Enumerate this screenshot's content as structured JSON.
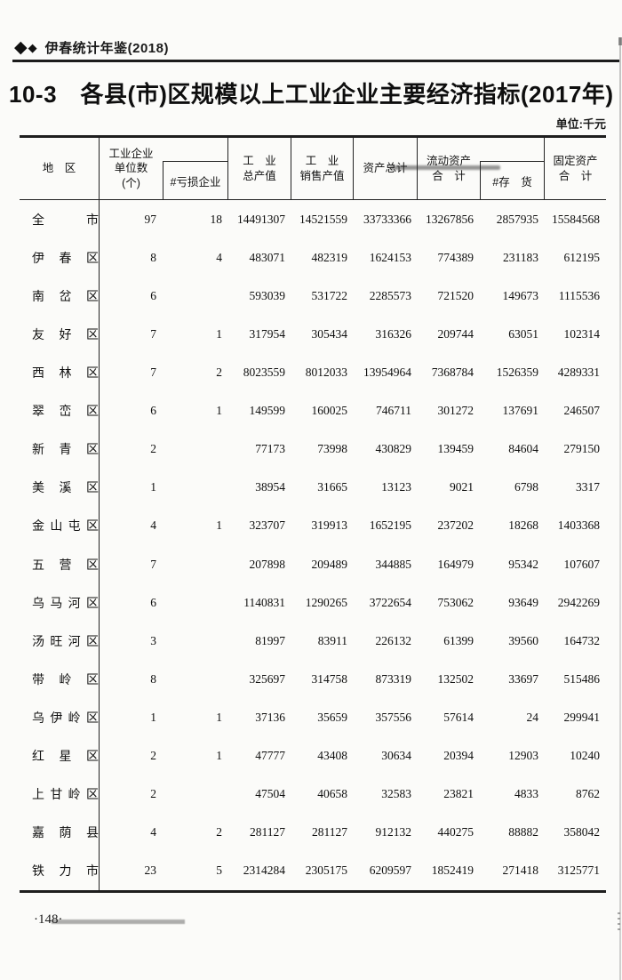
{
  "page": {
    "banner": {
      "diamond_large": "◆",
      "diamond_small": "◆",
      "text": "伊春统计年鉴(2018)"
    },
    "title": "10-3　各县(市)区规模以上工业企业主要经济指标(2017年)",
    "unit_note": "单位:千元",
    "page_number": "·148·"
  },
  "table": {
    "header": {
      "region": "地　区",
      "units": "工业企业\n单位数\n(个)",
      "loss": "#亏损企业",
      "gross": "工　业\n总产值",
      "sales": "工　业\n销售产值",
      "assets": "资产总计",
      "current": "流动资产\n合　计",
      "inventory": "#存　货",
      "fixed": "固定资产\n合　计"
    },
    "rows": [
      {
        "region": "全市",
        "values": [
          "97",
          "18",
          "14491307",
          "14521559",
          "33733366",
          "13267856",
          "2857935",
          "15584568"
        ]
      },
      {
        "region": "伊春区",
        "values": [
          "8",
          "4",
          "483071",
          "482319",
          "1624153",
          "774389",
          "231183",
          "612195"
        ]
      },
      {
        "region": "南岔区",
        "values": [
          "6",
          "",
          "593039",
          "531722",
          "2285573",
          "721520",
          "149673",
          "1115536"
        ]
      },
      {
        "region": "友好区",
        "values": [
          "7",
          "1",
          "317954",
          "305434",
          "316326",
          "209744",
          "63051",
          "102314"
        ]
      },
      {
        "region": "西林区",
        "values": [
          "7",
          "2",
          "8023559",
          "8012033",
          "13954964",
          "7368784",
          "1526359",
          "4289331"
        ]
      },
      {
        "region": "翠峦区",
        "values": [
          "6",
          "1",
          "149599",
          "160025",
          "746711",
          "301272",
          "137691",
          "246507"
        ]
      },
      {
        "region": "新青区",
        "values": [
          "2",
          "",
          "77173",
          "73998",
          "430829",
          "139459",
          "84604",
          "279150"
        ]
      },
      {
        "region": "美溪区",
        "values": [
          "1",
          "",
          "38954",
          "31665",
          "13123",
          "9021",
          "6798",
          "3317"
        ]
      },
      {
        "region": "金山屯区",
        "values": [
          "4",
          "1",
          "323707",
          "319913",
          "1652195",
          "237202",
          "18268",
          "1403368"
        ]
      },
      {
        "region": "五营区",
        "values": [
          "7",
          "",
          "207898",
          "209489",
          "344885",
          "164979",
          "95342",
          "107607"
        ]
      },
      {
        "region": "乌马河区",
        "values": [
          "6",
          "",
          "1140831",
          "1290265",
          "3722654",
          "753062",
          "93649",
          "2942269"
        ]
      },
      {
        "region": "汤旺河区",
        "values": [
          "3",
          "",
          "81997",
          "83911",
          "226132",
          "61399",
          "39560",
          "164732"
        ]
      },
      {
        "region": "带岭区",
        "values": [
          "8",
          "",
          "325697",
          "314758",
          "873319",
          "132502",
          "33697",
          "515486"
        ]
      },
      {
        "region": "乌伊岭区",
        "values": [
          "1",
          "1",
          "37136",
          "35659",
          "357556",
          "57614",
          "24",
          "299941"
        ]
      },
      {
        "region": "红星区",
        "values": [
          "2",
          "1",
          "47777",
          "43408",
          "30634",
          "20394",
          "12903",
          "10240"
        ]
      },
      {
        "region": "上甘岭区",
        "values": [
          "2",
          "",
          "47504",
          "40658",
          "32583",
          "23821",
          "4833",
          "8762"
        ]
      },
      {
        "region": "嘉荫县",
        "values": [
          "4",
          "2",
          "281127",
          "281127",
          "912132",
          "440275",
          "88882",
          "358042"
        ]
      },
      {
        "region": "铁力市",
        "values": [
          "23",
          "5",
          "2314284",
          "2305175",
          "6209597",
          "1852419",
          "271418",
          "3125771"
        ]
      }
    ]
  }
}
